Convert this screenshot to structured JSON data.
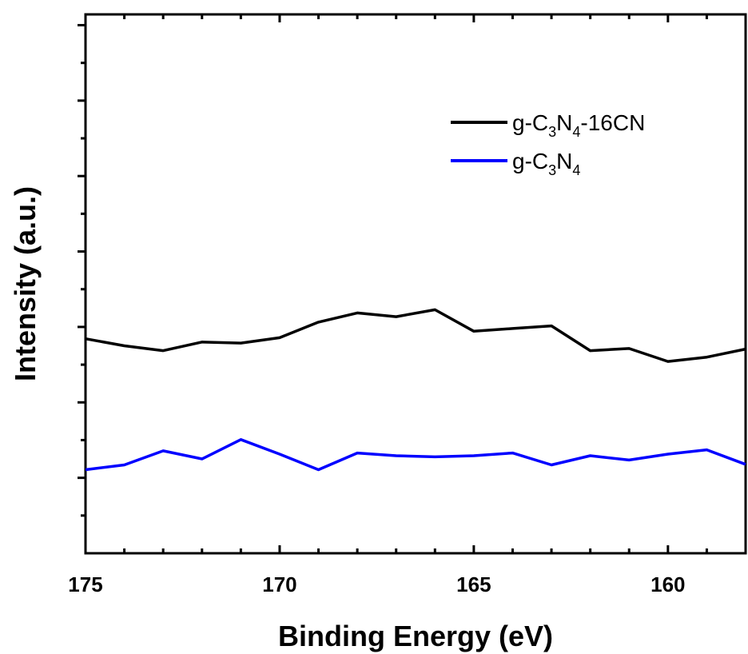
{
  "chart_data": {
    "type": "line",
    "xlabel": "Binding Energy (eV)",
    "ylabel": "Intensity (a.u.)",
    "xlim": [
      175,
      158
    ],
    "x_reversed": true,
    "ylim": [
      0,
      100
    ],
    "y_tick_labels_shown": false,
    "x_ticks": [
      175,
      170,
      165,
      160
    ],
    "x_tick_labels": [
      "175",
      "170",
      "165",
      "160"
    ],
    "grid": false,
    "legend_position": "top-right",
    "series": [
      {
        "name_parts": [
          "g-C",
          "3",
          "N",
          "4",
          "-16CN"
        ],
        "color": "#000000",
        "x": [
          175,
          174,
          173,
          172,
          171,
          170,
          169,
          168,
          167,
          166,
          165,
          164,
          163,
          162,
          161,
          160,
          159,
          158
        ],
        "y": [
          39.8,
          38.5,
          37.6,
          39.2,
          39.0,
          40.0,
          42.9,
          44.6,
          43.9,
          45.2,
          41.2,
          41.7,
          42.2,
          37.6,
          38.0,
          35.6,
          36.4,
          37.9
        ]
      },
      {
        "name_parts": [
          "g-C",
          "3",
          "N",
          "4"
        ],
        "color": "#0000ff",
        "x": [
          175,
          174,
          173,
          172,
          171,
          170,
          169,
          168,
          167,
          166,
          165,
          164,
          163,
          162,
          161,
          160,
          159,
          158
        ],
        "y": [
          15.5,
          16.4,
          19.0,
          17.5,
          21.1,
          18.4,
          15.5,
          18.6,
          18.1,
          17.9,
          18.1,
          18.6,
          16.4,
          18.1,
          17.3,
          18.4,
          19.2,
          16.5
        ]
      }
    ]
  }
}
